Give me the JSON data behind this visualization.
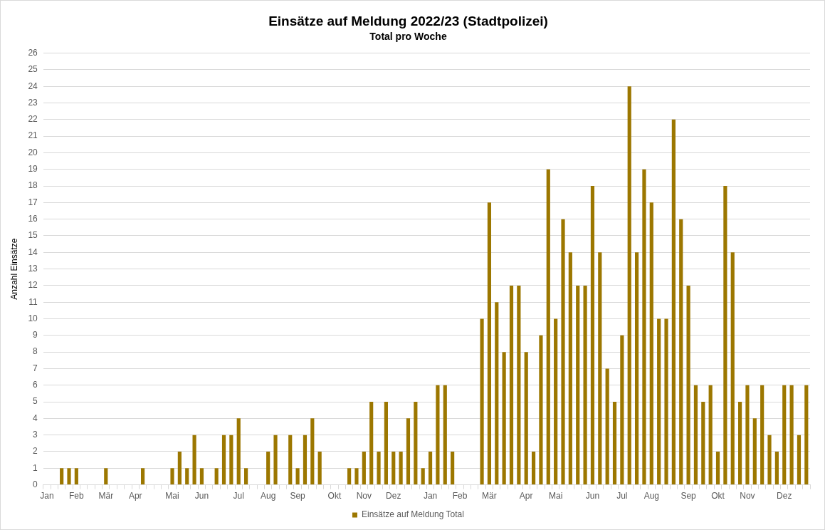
{
  "chart_data": {
    "type": "bar",
    "title": "Einsätze auf Meldung 2022/23 (Stadtpolizei)",
    "subtitle": "Total pro Woche",
    "ylabel": "Anzahl Einsätze",
    "categories": [
      "Jan",
      null,
      null,
      null,
      "Feb",
      null,
      null,
      null,
      "Mär",
      null,
      null,
      null,
      "Apr",
      null,
      null,
      null,
      null,
      "Mai",
      null,
      null,
      null,
      "Jun",
      null,
      null,
      null,
      null,
      "Jul",
      null,
      null,
      null,
      "Aug",
      null,
      null,
      null,
      "Sep",
      null,
      null,
      null,
      null,
      "Okt",
      null,
      null,
      null,
      "Nov",
      null,
      null,
      null,
      "Dez",
      null,
      null,
      null,
      null,
      "Jan",
      null,
      null,
      null,
      "Feb",
      null,
      null,
      null,
      "Mär",
      null,
      null,
      null,
      null,
      "Apr",
      null,
      null,
      null,
      "Mai",
      null,
      null,
      null,
      null,
      "Jun",
      null,
      null,
      null,
      "Jul",
      null,
      null,
      null,
      "Aug",
      null,
      null,
      null,
      null,
      "Sep",
      null,
      null,
      null,
      "Okt",
      null,
      null,
      null,
      "Nov",
      null,
      null,
      null,
      null,
      "Dez",
      null,
      null,
      null
    ],
    "series": [
      {
        "name": "Einsätze auf Meldung Total",
        "color": "#9c7700",
        "values": [
          0,
          0,
          1,
          1,
          1,
          0,
          0,
          0,
          1,
          0,
          0,
          0,
          0,
          1,
          0,
          0,
          0,
          1,
          2,
          1,
          3,
          1,
          0,
          1,
          3,
          3,
          4,
          1,
          0,
          0,
          2,
          3,
          0,
          3,
          1,
          3,
          4,
          2,
          0,
          0,
          0,
          1,
          1,
          2,
          5,
          2,
          5,
          2,
          2,
          4,
          5,
          1,
          2,
          6,
          6,
          2,
          0,
          0,
          0,
          10,
          17,
          11,
          8,
          12,
          12,
          8,
          2,
          9,
          19,
          10,
          16,
          14,
          12,
          12,
          18,
          14,
          7,
          5,
          9,
          24,
          14,
          19,
          17,
          10,
          10,
          22,
          16,
          12,
          6,
          5,
          6,
          2,
          18,
          14,
          5,
          6,
          4,
          6,
          3,
          2,
          6,
          6,
          3,
          6
        ]
      }
    ],
    "ylim": [
      0,
      26
    ],
    "yticks": [
      0,
      1,
      2,
      3,
      4,
      5,
      6,
      7,
      8,
      9,
      10,
      11,
      12,
      13,
      14,
      15,
      16,
      17,
      18,
      19,
      20,
      21,
      22,
      23,
      24,
      25,
      26
    ],
    "grid": "y",
    "legend": "bottom"
  }
}
